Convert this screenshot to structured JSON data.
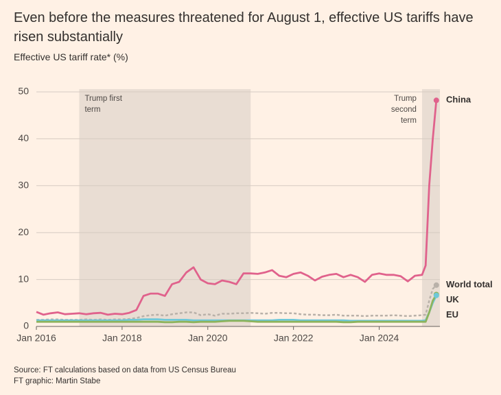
{
  "chart_data": {
    "type": "line",
    "title": "Even before the measures threatened for August 1, effective US tariffs have risen substantially",
    "subtitle": "Effective US tariff rate* (%)",
    "source": "Source: FT calculations based on data from US Census Bureau",
    "credit": "FT graphic: Martin Stabe",
    "x": [
      "2016-01",
      "2016-03",
      "2016-05",
      "2016-07",
      "2016-09",
      "2016-11",
      "2017-01",
      "2017-03",
      "2017-05",
      "2017-07",
      "2017-09",
      "2017-11",
      "2018-01",
      "2018-03",
      "2018-05",
      "2018-07",
      "2018-09",
      "2018-11",
      "2019-01",
      "2019-03",
      "2019-05",
      "2019-07",
      "2019-09",
      "2019-11",
      "2020-01",
      "2020-03",
      "2020-05",
      "2020-07",
      "2020-09",
      "2020-11",
      "2021-01",
      "2021-03",
      "2021-05",
      "2021-07",
      "2021-09",
      "2021-11",
      "2022-01",
      "2022-03",
      "2022-05",
      "2022-07",
      "2022-09",
      "2022-11",
      "2023-01",
      "2023-03",
      "2023-05",
      "2023-07",
      "2023-09",
      "2023-11",
      "2024-01",
      "2024-03",
      "2024-05",
      "2024-07",
      "2024-09",
      "2024-11",
      "2025-01",
      "2025-02",
      "2025-03",
      "2025-04",
      "2025-05"
    ],
    "xlim": [
      "2016-01",
      "2025-06"
    ],
    "xticks": [
      {
        "value": "2016-01",
        "label": "Jan 2016"
      },
      {
        "value": "2018-01",
        "label": "Jan 2018"
      },
      {
        "value": "2020-01",
        "label": "Jan 2020"
      },
      {
        "value": "2022-01",
        "label": "Jan 2022"
      },
      {
        "value": "2024-01",
        "label": "Jan 2024"
      }
    ],
    "ylim": [
      0,
      50
    ],
    "yticks": [
      0,
      10,
      20,
      30,
      40,
      50
    ],
    "grid": true,
    "shaded": [
      {
        "start": "2017-01",
        "end": "2021-01",
        "label": [
          "Trump first",
          "term"
        ]
      },
      {
        "start": "2025-01",
        "end": "2025-06",
        "label": [
          "Trump",
          "second",
          "term"
        ]
      }
    ],
    "series": [
      {
        "name": "China",
        "color": "#e0628c",
        "style": "solid",
        "values": [
          3.1,
          2.5,
          2.8,
          3.0,
          2.6,
          2.7,
          2.8,
          2.6,
          2.8,
          2.9,
          2.5,
          2.7,
          2.6,
          2.9,
          3.5,
          6.5,
          7.0,
          7.0,
          6.5,
          9.0,
          9.5,
          11.5,
          12.6,
          10.0,
          9.2,
          9.0,
          9.8,
          9.5,
          9.0,
          11.3,
          11.3,
          11.2,
          11.5,
          12.0,
          10.8,
          10.5,
          11.2,
          11.5,
          10.8,
          9.8,
          10.6,
          11.0,
          11.2,
          10.5,
          11.0,
          10.5,
          9.5,
          11.0,
          11.3,
          11.0,
          11.0,
          10.7,
          9.6,
          10.8,
          11.0,
          13.0,
          30.0,
          40.0,
          48.2
        ]
      },
      {
        "name": "World total",
        "color": "#b9b1a9",
        "style": "dashed",
        "values": [
          1.4,
          1.4,
          1.5,
          1.5,
          1.4,
          1.4,
          1.4,
          1.5,
          1.4,
          1.5,
          1.4,
          1.5,
          1.5,
          1.6,
          1.8,
          2.2,
          2.4,
          2.5,
          2.3,
          2.6,
          2.8,
          3.0,
          3.0,
          2.4,
          2.6,
          2.3,
          2.7,
          2.7,
          2.8,
          2.8,
          2.9,
          2.8,
          2.7,
          2.9,
          2.9,
          2.8,
          2.8,
          2.6,
          2.5,
          2.5,
          2.4,
          2.4,
          2.5,
          2.3,
          2.3,
          2.3,
          2.2,
          2.3,
          2.3,
          2.3,
          2.4,
          2.3,
          2.2,
          2.3,
          2.4,
          2.5,
          5.5,
          8.0,
          8.8
        ]
      },
      {
        "name": "UK",
        "color": "#8db35c",
        "style": "solid",
        "values": [
          1.0,
          1.0,
          1.0,
          1.0,
          1.0,
          1.0,
          1.0,
          1.0,
          1.0,
          1.0,
          1.0,
          1.0,
          1.0,
          1.0,
          1.0,
          1.0,
          1.0,
          1.0,
          0.9,
          0.9,
          1.0,
          1.0,
          0.9,
          1.0,
          1.0,
          1.0,
          1.1,
          1.2,
          1.2,
          1.2,
          1.1,
          1.0,
          1.0,
          1.0,
          1.0,
          1.0,
          1.0,
          1.0,
          1.0,
          1.0,
          1.0,
          1.0,
          1.0,
          0.9,
          0.9,
          1.0,
          1.0,
          1.0,
          1.0,
          1.0,
          1.0,
          1.0,
          1.0,
          1.0,
          1.0,
          1.0,
          3.0,
          5.5,
          6.8
        ]
      },
      {
        "name": "EU",
        "color": "#6fc8d8",
        "style": "solid",
        "values": [
          1.3,
          1.3,
          1.3,
          1.3,
          1.3,
          1.3,
          1.3,
          1.3,
          1.3,
          1.3,
          1.3,
          1.3,
          1.3,
          1.4,
          1.4,
          1.5,
          1.5,
          1.5,
          1.4,
          1.4,
          1.4,
          1.4,
          1.3,
          1.3,
          1.3,
          1.3,
          1.3,
          1.3,
          1.3,
          1.3,
          1.3,
          1.3,
          1.3,
          1.3,
          1.4,
          1.4,
          1.4,
          1.3,
          1.3,
          1.3,
          1.3,
          1.3,
          1.3,
          1.3,
          1.2,
          1.2,
          1.2,
          1.2,
          1.2,
          1.2,
          1.2,
          1.2,
          1.2,
          1.2,
          1.2,
          1.3,
          3.0,
          5.0,
          6.6
        ]
      }
    ]
  }
}
